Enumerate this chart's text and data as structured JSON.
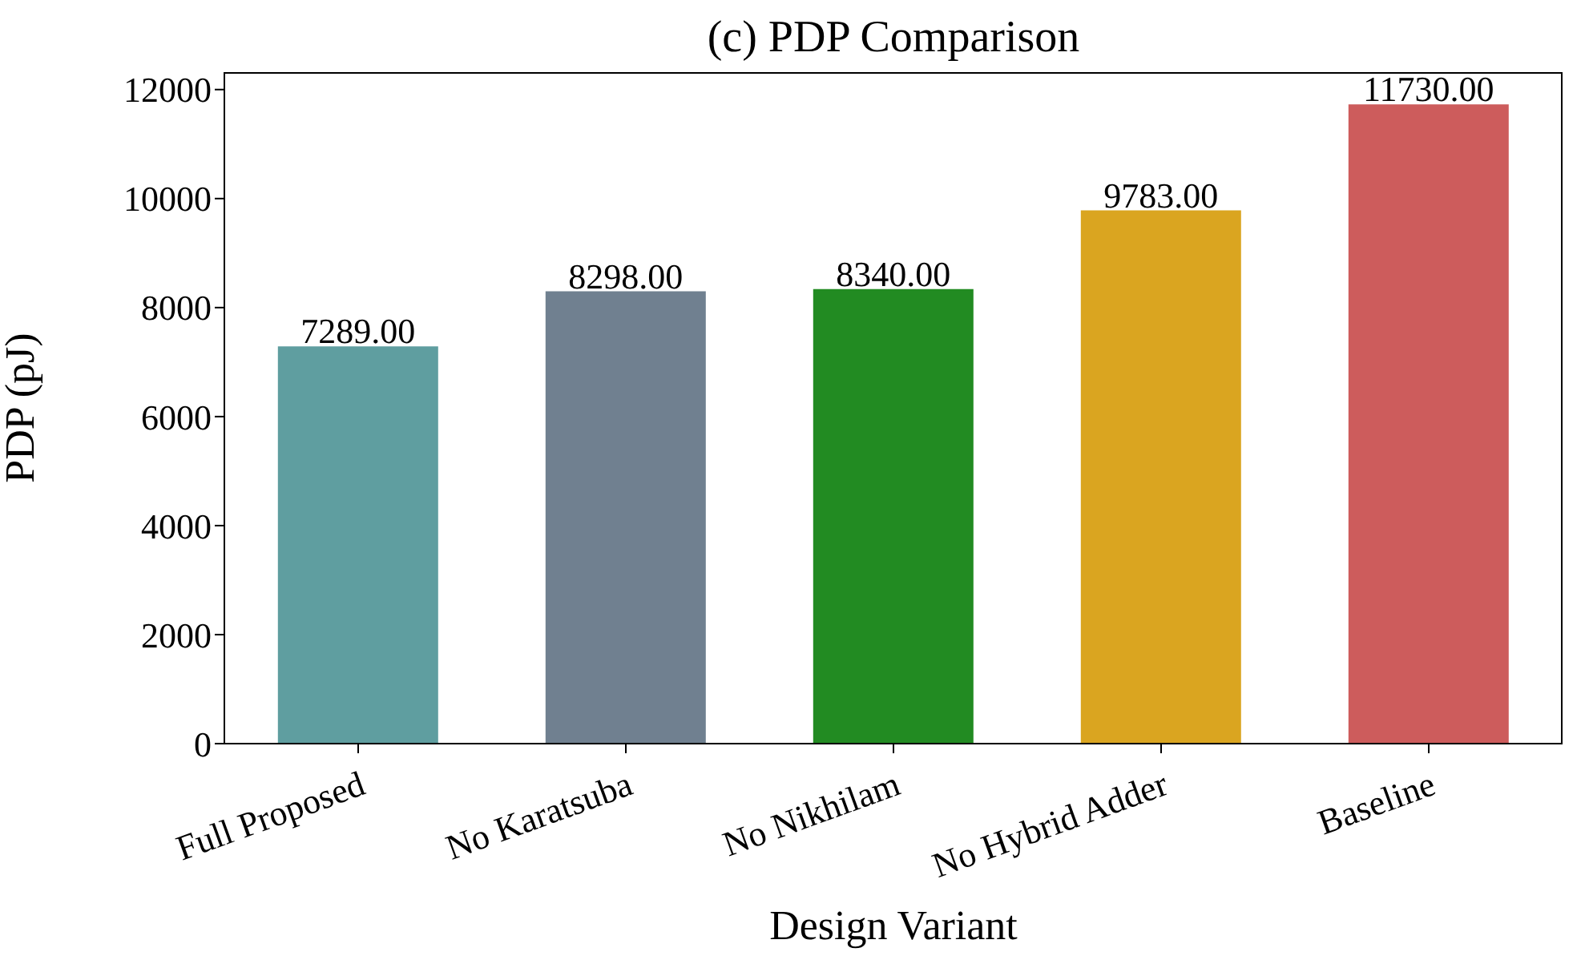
{
  "chart_data": {
    "type": "bar",
    "title": "(c) PDP Comparison",
    "xlabel": "Design Variant",
    "ylabel": "PDP (pJ)",
    "categories": [
      "Full Proposed",
      "No Karatsuba",
      "No Nikhilam",
      "No Hybrid Adder",
      "Baseline"
    ],
    "values": [
      7289,
      8298,
      8340,
      9783,
      11730
    ],
    "colors": [
      "#5f9ea0",
      "#708090",
      "#228b22",
      "#daa520",
      "#cd5c5c"
    ],
    "value_labels": [
      "7289.00",
      "8298.00",
      "8340.00",
      "9783.00",
      "11730.00"
    ],
    "ylim": [
      0,
      12320
    ],
    "yticks": [
      0,
      2000,
      4000,
      6000,
      8000,
      10000,
      12000
    ],
    "grid": false
  }
}
